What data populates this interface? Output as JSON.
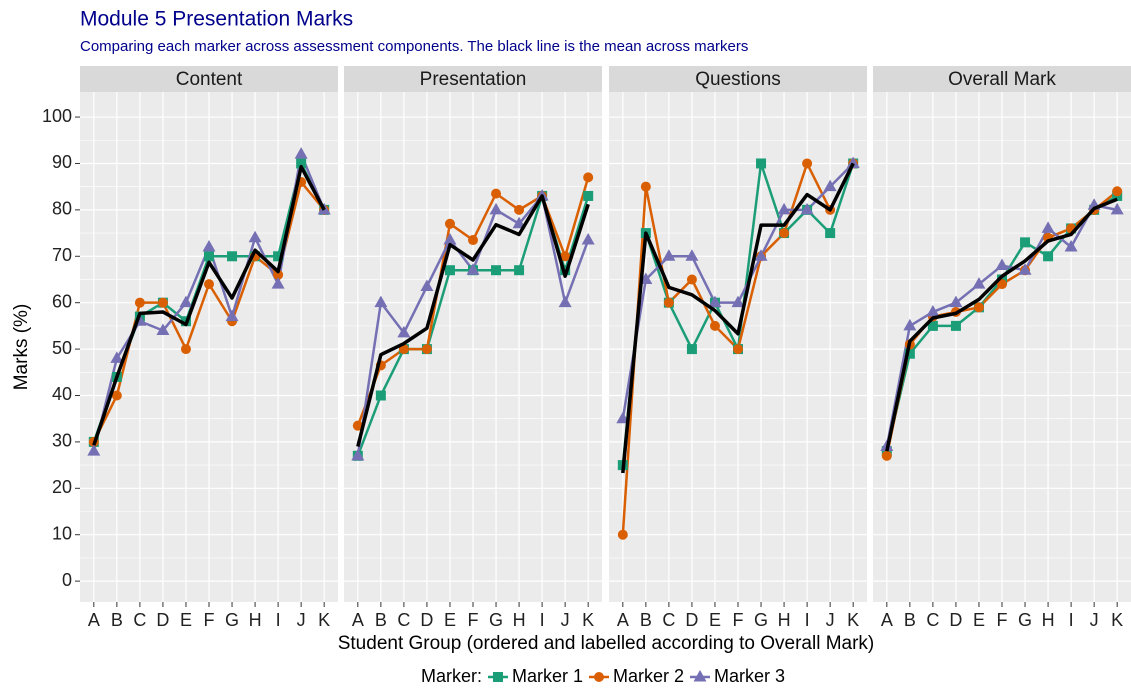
{
  "chart_data": {
    "type": "line",
    "title": "Module 5 Presentation Marks",
    "subtitle": "Comparing each marker across assessment components.  The black line is the mean across markers",
    "ylabel": "Marks (%)",
    "xlabel": "Student Group (ordered and labelled according to Overall Mark)",
    "legend_title": "Marker:",
    "legend_position": "bottom",
    "grid": true,
    "mean_color": "#000000",
    "categories": [
      "A",
      "B",
      "C",
      "D",
      "E",
      "F",
      "G",
      "H",
      "I",
      "J",
      "K"
    ],
    "ylim": [
      -4.5,
      105.4
    ],
    "yticks": [
      0,
      10,
      20,
      30,
      40,
      50,
      60,
      70,
      80,
      90,
      100
    ],
    "series": [
      {
        "name": "Marker 1",
        "color": "#1B9E77",
        "marker": "square"
      },
      {
        "name": "Marker 2",
        "color": "#D95F02",
        "marker": "circle"
      },
      {
        "name": "Marker 3",
        "color": "#7570B3",
        "marker": "triangle"
      }
    ],
    "panels": [
      {
        "title": "Content",
        "values": [
          [
            30,
            44,
            57,
            60,
            56,
            70,
            70,
            70,
            70,
            90,
            80
          ],
          [
            30,
            40,
            60,
            60,
            50,
            64,
            56,
            70,
            66,
            86,
            80
          ],
          [
            28,
            48,
            56,
            54,
            60,
            72,
            57,
            74,
            64,
            92,
            80
          ]
        ],
        "mean": [
          29.3,
          44,
          57.7,
          58,
          55.3,
          68.7,
          61,
          71.3,
          66.7,
          89.3,
          80
        ]
      },
      {
        "title": "Presentation",
        "values": [
          [
            27,
            40,
            50,
            50,
            67,
            67,
            67,
            67,
            83,
            67,
            83
          ],
          [
            33.5,
            46.5,
            50,
            50,
            77,
            73.5,
            83.5,
            80,
            83,
            70,
            87
          ],
          [
            27,
            60,
            53.5,
            63.5,
            73.5,
            67,
            80,
            77,
            83,
            60,
            73.5
          ]
        ],
        "mean": [
          29,
          48.8,
          51.2,
          54.5,
          72.5,
          69.2,
          76.8,
          74.7,
          83,
          65.7,
          81.2
        ]
      },
      {
        "title": "Questions",
        "values": [
          [
            25,
            75,
            60,
            50,
            60,
            50,
            90,
            75,
            80,
            75,
            90
          ],
          [
            10,
            85,
            60,
            65,
            55,
            50,
            70,
            75,
            90,
            80,
            90
          ],
          [
            35,
            65,
            70,
            70,
            60,
            60,
            70,
            80,
            80,
            85,
            90
          ]
        ],
        "mean": [
          23.3,
          75,
          63.3,
          61.7,
          58.3,
          53.3,
          76.7,
          76.7,
          83.3,
          80,
          90
        ]
      },
      {
        "title": "Overall Mark",
        "values": [
          [
            28,
            49,
            55,
            55,
            59,
            65,
            73,
            70,
            76,
            80,
            83
          ],
          [
            27,
            51,
            57,
            58,
            59,
            64,
            67,
            74,
            76,
            80,
            84
          ],
          [
            29,
            55,
            58,
            60,
            64,
            68,
            67,
            76,
            72,
            81,
            80
          ]
        ],
        "mean": [
          28,
          51.7,
          56.7,
          57.7,
          60.7,
          65.7,
          69,
          73.3,
          74.7,
          80.3,
          82.3
        ]
      }
    ]
  }
}
